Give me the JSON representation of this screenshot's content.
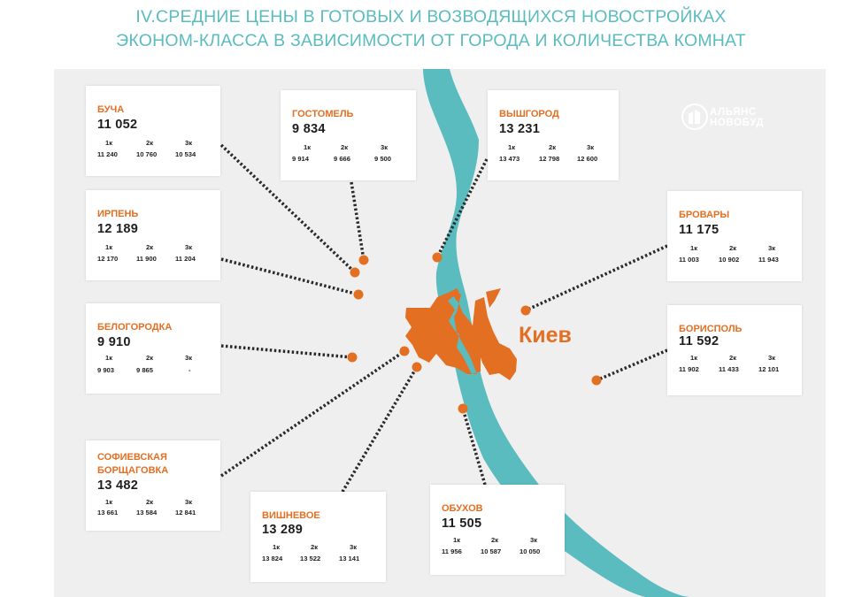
{
  "title": {
    "line1": "IV.СРЕДНИЕ ЦЕНЫ В ГОТОВЫХ И ВОЗВОДЯЩИХСЯ НОВОСТРОЙКАХ",
    "line2": "ЭКОНОМ-КЛАССА В ЗАВИСИМОСТИ ОТ ГОРОДА И КОЛИЧЕСТВА КОМНАТ"
  },
  "center_label": "Киев",
  "logo": {
    "line1": "АЛЬЯНС",
    "line2": "НОВОБУД"
  },
  "room_labels": [
    "1к",
    "2к",
    "3к"
  ],
  "colors": {
    "accent": "#e36f23",
    "river": "#5bbcc0",
    "map_bg": "#efefef"
  },
  "cities": [
    {
      "name": "БУЧА",
      "avg": "11 052",
      "rooms": [
        "11 240",
        "10 760",
        "10 534"
      ]
    },
    {
      "name": "ГОСТОМЕЛЬ",
      "avg": "9 834",
      "rooms": [
        "9 914",
        "9 666",
        "9 500"
      ]
    },
    {
      "name": "ВЫШГОРОД",
      "avg": "13 231",
      "rooms": [
        "13 473",
        "12 798",
        "12 600"
      ]
    },
    {
      "name": "ИРПЕНЬ",
      "avg": "12 189",
      "rooms": [
        "12 170",
        "11 900",
        "11 204"
      ]
    },
    {
      "name": "БРОВАРЫ",
      "avg": "11 175",
      "rooms": [
        "11 003",
        "10 902",
        "11 943"
      ]
    },
    {
      "name": "БЕЛОГОРОДКА",
      "avg": "9 910",
      "rooms": [
        "9 903",
        "9 865",
        "-"
      ]
    },
    {
      "name": "БОРИСПОЛЬ",
      "avg": "11 592",
      "rooms": [
        "11 902",
        "11 433",
        "12 101"
      ]
    },
    {
      "name_lines": [
        "СОФИЕВСКАЯ",
        "БОРЩАГОВКА"
      ],
      "avg": "13 482",
      "rooms": [
        "13 661",
        "13 584",
        "12 841"
      ]
    },
    {
      "name": "ВИШНЕВОЕ",
      "avg": "13 289",
      "rooms": [
        "13 824",
        "13 522",
        "13 141"
      ]
    },
    {
      "name": "ОБУХОВ",
      "avg": "11 505",
      "rooms": [
        "11 956",
        "10 587",
        "10 050"
      ]
    }
  ]
}
